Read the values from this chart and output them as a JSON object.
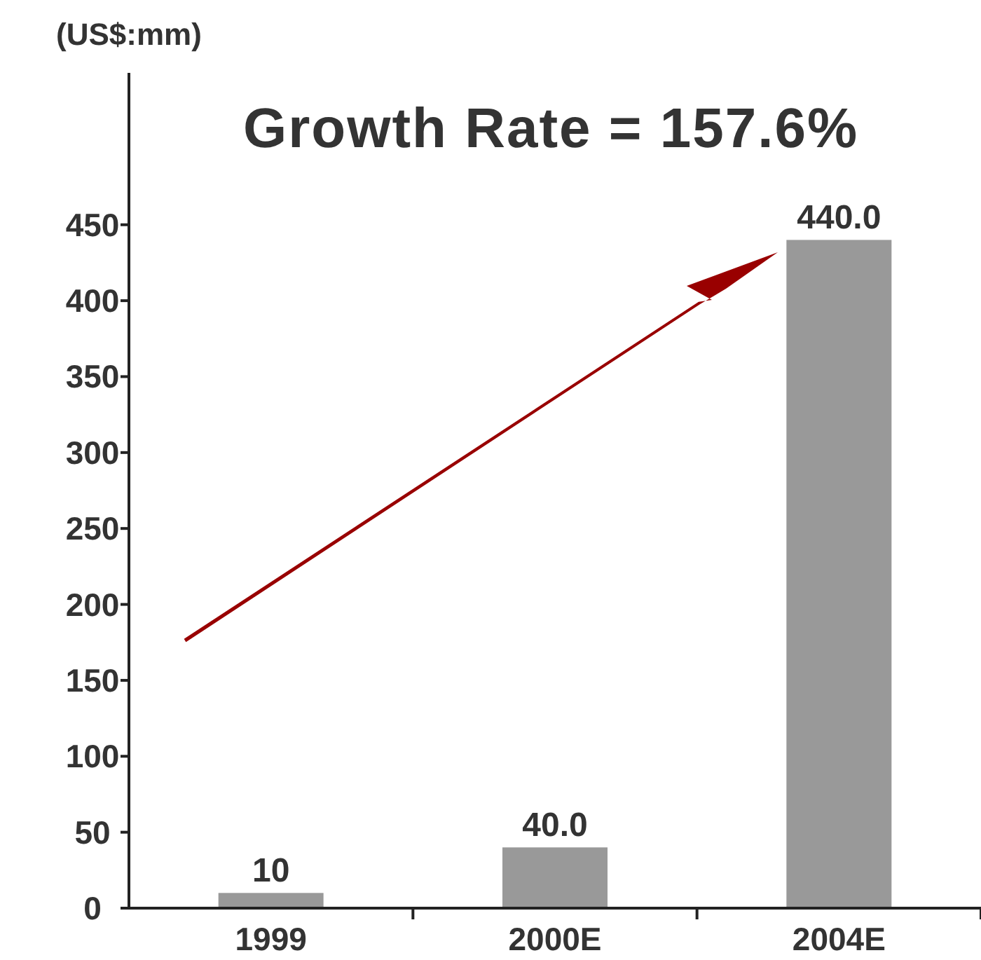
{
  "chart_data": {
    "type": "bar",
    "title": "Growth Rate = 157.6%",
    "ylabel": "(US$:mm)",
    "categories": [
      "1999",
      "2000E",
      "2004E"
    ],
    "values": [
      10,
      40.0,
      440.0
    ],
    "value_labels": [
      "10",
      "40.0",
      "440.0"
    ],
    "color": "#999999",
    "ylim": [
      0,
      550
    ],
    "yticks": [
      0,
      50,
      100,
      150,
      200,
      250,
      300,
      350,
      400,
      450
    ],
    "grid": false
  }
}
